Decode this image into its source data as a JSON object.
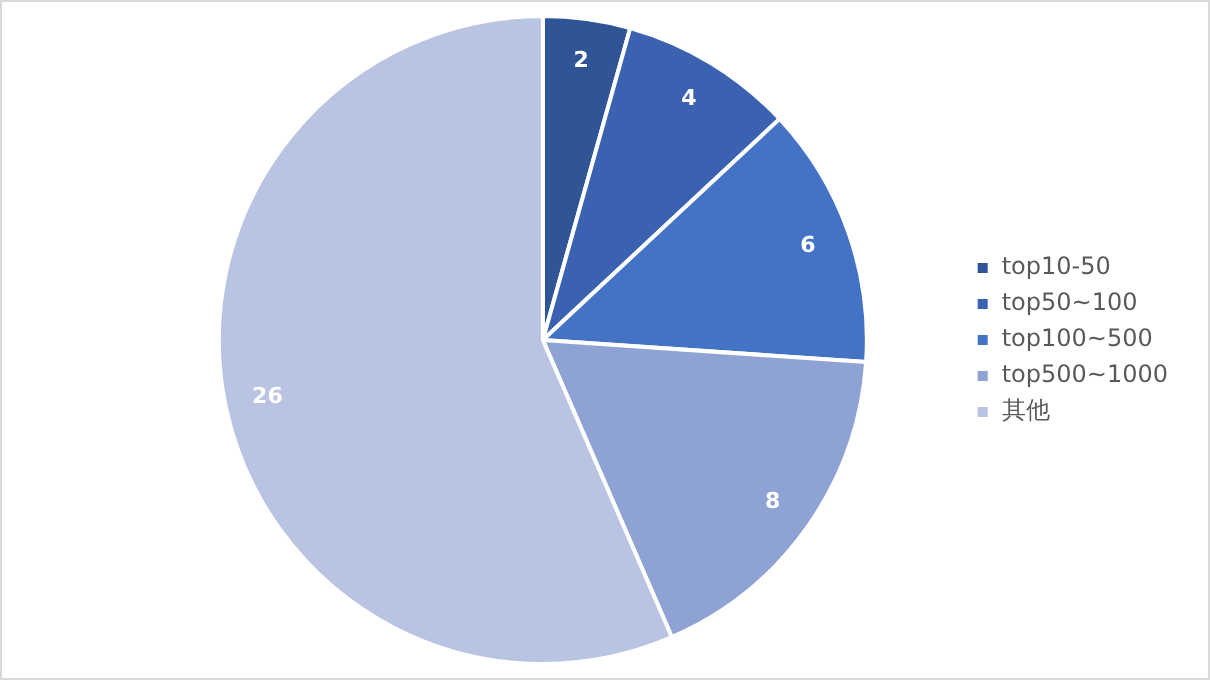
{
  "chart_data": {
    "type": "pie",
    "categories": [
      "top10-50",
      "top50~100",
      "top100~500",
      "top500~1000",
      "其他"
    ],
    "values": [
      2,
      4,
      6,
      8,
      26
    ],
    "colors": [
      "#2f5597",
      "#3a62b0",
      "#4472c4",
      "#8fa2d4",
      "#b9c3e2"
    ],
    "data_labels": true,
    "legend": "right"
  }
}
